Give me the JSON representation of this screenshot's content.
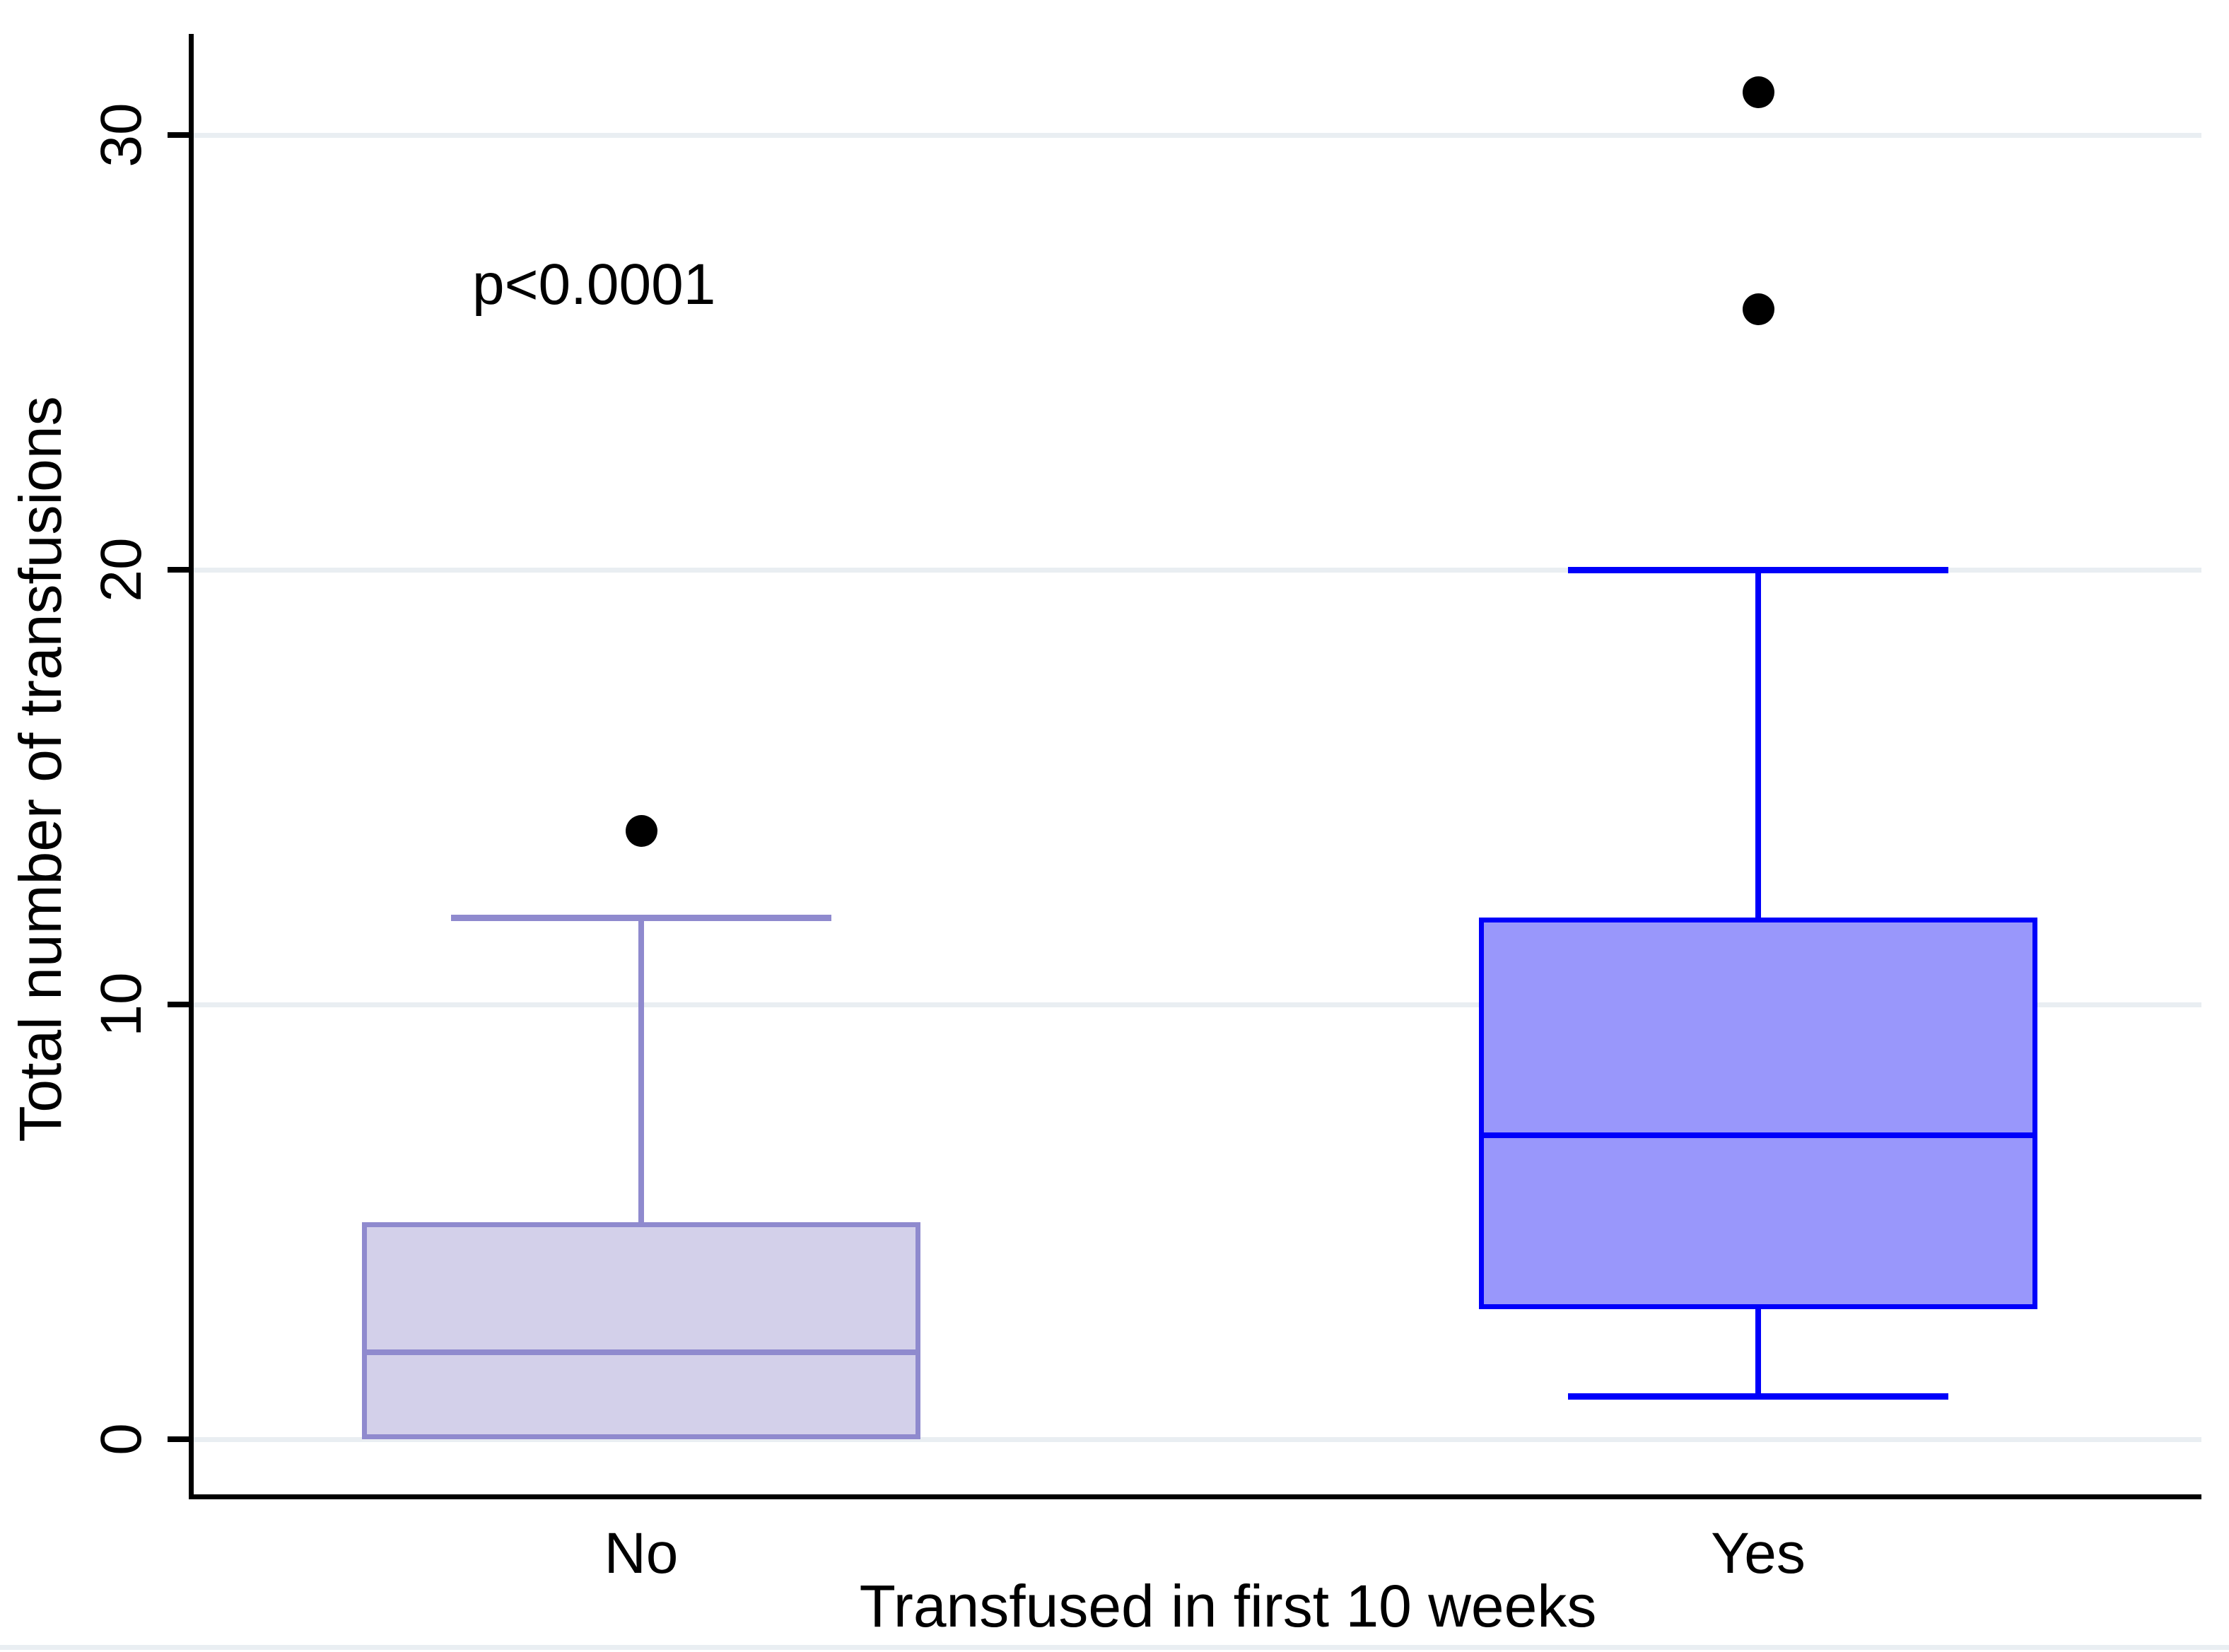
{
  "chart_data": {
    "type": "box",
    "title": "",
    "ylabel": "Total number of transfusions",
    "xlabel": "Transfused in first 10 weeks",
    "annotation": "p<0.0001",
    "y_ticks": [
      0,
      10,
      20,
      30
    ],
    "ylim": [
      -1.3,
      32.3
    ],
    "grid": true,
    "legend_position": "none",
    "categories": [
      "No",
      "Yes"
    ],
    "series": [
      {
        "name": "No",
        "whisker_low": 0,
        "q1": 0,
        "median": 2,
        "q3": 5,
        "whisker_high": 12,
        "outliers": [
          14
        ],
        "fill_color": "#d3d0ea",
        "line_color": "#8f8ace"
      },
      {
        "name": "Yes",
        "whisker_low": 1,
        "q1": 3,
        "median": 7,
        "q3": 12,
        "whisker_high": 20,
        "outliers": [
          26,
          31
        ],
        "fill_color": "#9997fb",
        "line_color": "#0000fa"
      }
    ],
    "outlier_color": "#000000",
    "gridline_color": "#e9eef2",
    "axis_color": "#000000",
    "background_color": "#ffffff"
  }
}
